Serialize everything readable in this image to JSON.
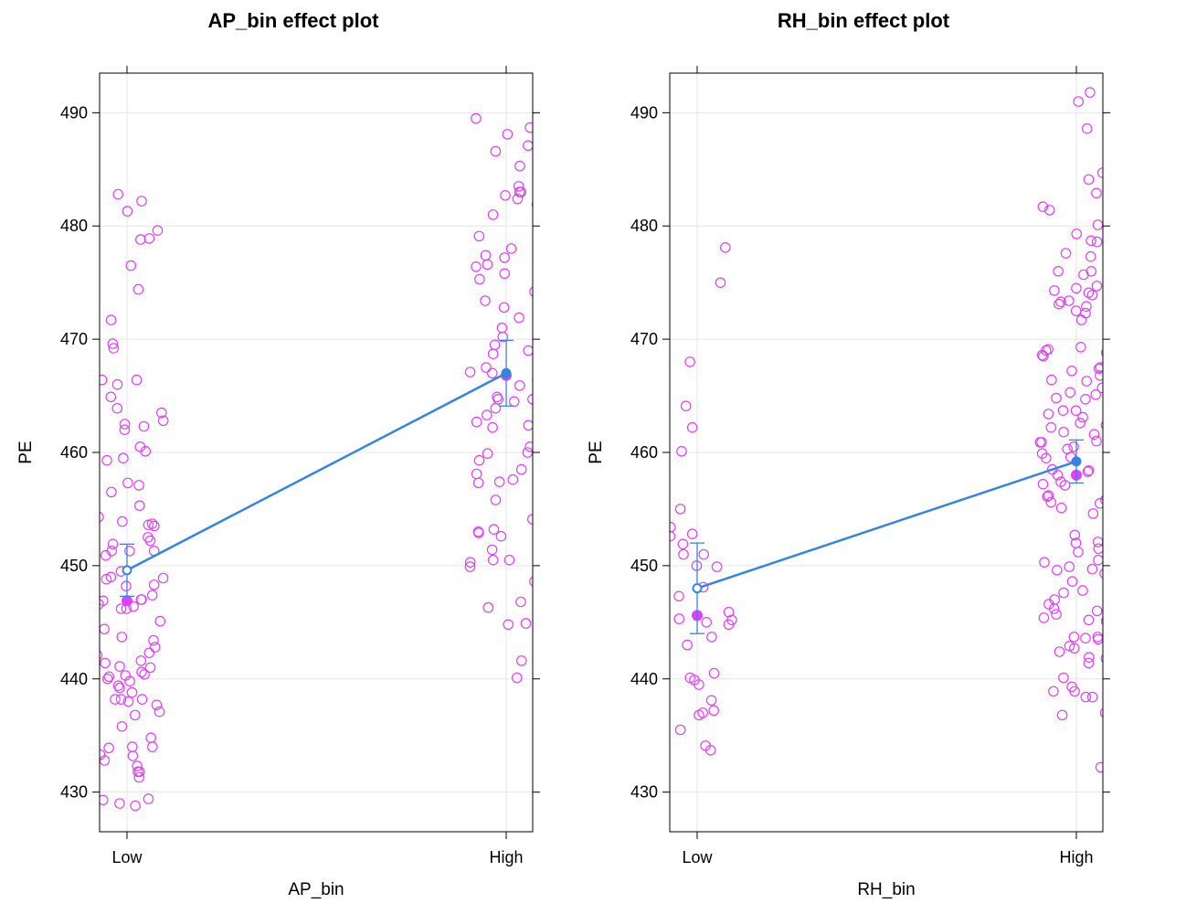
{
  "colors": {
    "points": "#e040fb",
    "fit": "#3584e4",
    "grid": "#e6e6e6",
    "frame": "#000000"
  },
  "chart_data": [
    {
      "type": "scatter",
      "title": "AP_bin effect plot",
      "xlabel": "AP_bin",
      "ylabel": "PE",
      "categories": [
        "Low",
        "High"
      ],
      "ylim": [
        426.5,
        493.5
      ],
      "yticks": [
        430,
        440,
        450,
        460,
        470,
        480,
        490
      ],
      "grid": true,
      "effect": {
        "fit": [
          449.6,
          467.0
        ],
        "lower": [
          447.3,
          464.1
        ],
        "upper": [
          451.9,
          469.9
        ]
      },
      "group_means": [
        446.9,
        466.8
      ],
      "points": {
        "Low": [
          474.4,
          469.6,
          466.4,
          462.8,
          460.5,
          455.3,
          446.9,
          442.8,
          438.2,
          434.8,
          440.4,
          438.2,
          429.4,
          432.8,
          433.2,
          440.0,
          450.9,
          452.5,
          451.3,
          453.7,
          454.3,
          462.5,
          462.3,
          463.9,
          464.9,
          466.0,
          479.6,
          448.3,
          446.2,
          443.7,
          441.0,
          429.3,
          466.4,
          469.2,
          482.8,
          481.3,
          463.5,
          462.0,
          460.1,
          459.3,
          453.9,
          453.5,
          452.2,
          451.9,
          451.3,
          447.4,
          447.0,
          446.6,
          446.4,
          442.1,
          441.6,
          441.1,
          440.6,
          440.2,
          439.4,
          439.2,
          438.2,
          437.1,
          435.8,
          435.6,
          433.9,
          433.3,
          431.3,
          433.0,
          456.5,
          449.0,
          449.5,
          448.8,
          442.3,
          440.3,
          439.8,
          434.0,
          428.8,
          482.2,
          468.0,
          476.5,
          459.5,
          457.3,
          457.1,
          451.3,
          448.2,
          445.1,
          441.4,
          438.0,
          437.7,
          436.8,
          436.1,
          432.3,
          431.8,
          429.0,
          478.9,
          478.8,
          471.7,
          453.6,
          448.9,
          446.2,
          444.4,
          438.8,
          431.8,
          443.4,
          434.0,
          447.0
        ],
        "High": [
          489.5,
          481.2,
          476.4,
          476.6,
          470.2,
          469.0,
          467.0,
          464.7,
          463.3,
          462.4,
          457.4,
          452.6,
          450.3,
          450.5,
          458.5,
          460.5,
          460.0,
          457.7,
          457.6,
          454.1,
          451.4,
          449.9,
          446.3,
          444.8,
          440.1,
          485.3,
          483.5,
          482.7,
          482.4,
          481.9,
          483.0,
          479.1,
          478.0,
          473.4,
          471.9,
          471.0,
          468.7,
          465.9,
          463.9,
          464.9,
          459.9,
          453.2,
          453.0,
          450.5,
          447.3,
          446.8,
          488.1,
          488.7,
          487.1,
          481.0,
          477.2,
          475.8,
          475.3,
          474.2,
          469.5,
          467.1,
          464.5,
          464.7,
          462.7,
          459.3,
          457.3,
          452.9,
          444.9,
          441.6,
          483.0,
          486.6,
          477.4,
          472.8,
          466.4,
          462.2,
          458.1,
          448.6,
          455.8,
          475.5,
          467.5
        ]
      }
    },
    {
      "type": "scatter",
      "title": "RH_bin effect plot",
      "xlabel": "RH_bin",
      "ylabel": "PE",
      "categories": [
        "Low",
        "High"
      ],
      "ylim": [
        426.5,
        493.5
      ],
      "yticks": [
        430,
        440,
        450,
        460,
        470,
        480,
        490
      ],
      "grid": true,
      "effect": {
        "fit": [
          448.0,
          459.2
        ],
        "lower": [
          444.0,
          457.3
        ],
        "upper": [
          452.0,
          461.1
        ]
      },
      "group_means": [
        445.6,
        458.0
      ],
      "points": {
        "Low": [
          447.3,
          448.1,
          445.2,
          445.3,
          440.5,
          451.9,
          475.0,
          460.1,
          439.5,
          437.2,
          436.8,
          438.1,
          433.7,
          435.5,
          453.4,
          449.9,
          456.7,
          452.6,
          450.0,
          439.9,
          443.0,
          443.7,
          445.0,
          437.0,
          464.1,
          462.2,
          452.8,
          451.0,
          451.0,
          445.9,
          444.8,
          434.1,
          468.0,
          478.1,
          455.0,
          448.0,
          440.1
        ],
        "High": [
          473.4,
          471.2,
          470.9,
          468.6,
          465.3,
          460.3,
          458.5,
          455.8,
          455.1,
          450.7,
          449.7,
          449.0,
          446.0,
          443.7,
          441.4,
          437.0,
          436.8,
          478.6,
          475.7,
          472.3,
          469.3,
          469.0,
          468.8,
          461.6,
          460.9,
          458.3,
          457.4,
          455.5,
          454.6,
          452.5,
          451.2,
          449.3,
          447.0,
          446.6,
          445.7,
          445.1,
          443.5,
          442.4,
          440.1,
          484.7,
          482.9,
          477.3,
          476.0,
          474.3,
          467.5,
          466.8,
          465.1,
          464.8,
          462.2,
          459.5,
          458.0,
          457.1,
          452.7,
          452.0,
          450.3,
          447.6,
          443.6,
          441.8,
          438.9,
          481.7,
          476.0,
          474.7,
          474.5,
          472.9,
          471.7,
          469.1,
          467.4,
          467.2,
          466.3,
          464.7,
          463.7,
          463.4,
          463.1,
          462.6,
          461.0,
          459.6,
          457.2,
          454.0,
          452.1,
          450.5,
          449.6,
          446.2,
          445.2,
          443.8,
          442.9,
          442.7,
          442.4,
          441.9,
          438.9,
          491.8,
          491.0,
          479.3,
          478.7,
          473.9,
          473.3,
          473.1,
          468.5,
          466.4,
          465.7,
          463.7,
          461.8,
          460.9,
          456.1,
          453.5,
          451.5,
          447.8,
          444.3,
          443.7,
          438.4,
          432.2,
          492.3,
          488.6,
          484.1,
          481.4,
          480.1,
          477.6,
          474.1,
          472.5,
          462.4,
          460.5,
          459.9,
          458.4,
          456.2,
          455.6,
          451.7,
          449.9,
          448.6,
          445.4,
          443.5,
          439.3,
          438.4
        ]
      }
    }
  ]
}
